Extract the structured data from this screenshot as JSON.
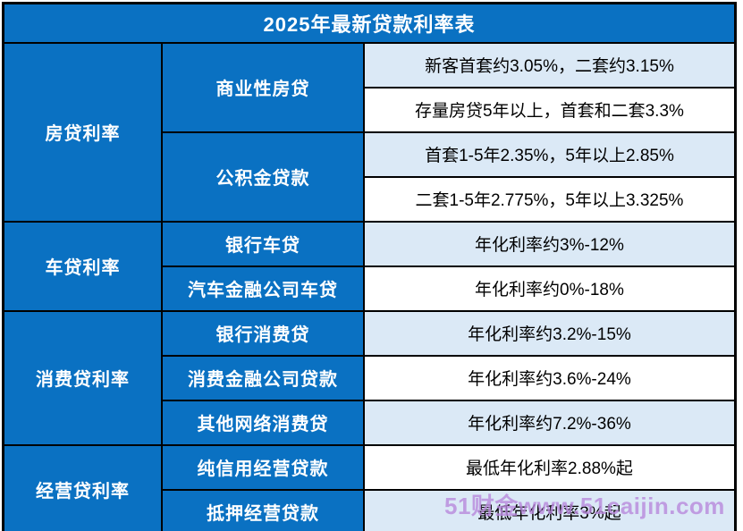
{
  "title": "2025年最新贷款利率表",
  "watermark": "51财金www.51caijin.com",
  "colors": {
    "header_blue": "#0a71c2",
    "row_light_blue": "#dbe9f6",
    "row_white": "#ffffff",
    "border_black": "#000000",
    "watermark_purple": "#b989dd",
    "header_text": "#ffffff",
    "value_text": "#000000"
  },
  "table": {
    "sections": [
      {
        "category": "房贷利率",
        "subcategories": [
          {
            "name": "商业性房贷",
            "values": [
              "新客首套约3.05%，二套约3.15%",
              "存量房贷5年以上，首套和二套3.3%"
            ]
          },
          {
            "name": "公积金贷款",
            "values": [
              "首套1-5年2.35%，5年以上2.85%",
              "二套1-5年2.775%，5年以上3.325%"
            ]
          }
        ]
      },
      {
        "category": "车贷利率",
        "subcategories": [
          {
            "name": "银行车贷",
            "values": [
              "年化利率约3%-12%"
            ]
          },
          {
            "name": "汽车金融公司车贷",
            "values": [
              "年化利率约0%-18%"
            ]
          }
        ]
      },
      {
        "category": "消费贷利率",
        "subcategories": [
          {
            "name": "银行消费贷",
            "values": [
              "年化利率约3.2%-15%"
            ]
          },
          {
            "name": "消费金融公司贷款",
            "values": [
              "年化利率约3.6%-24%"
            ]
          },
          {
            "name": "其他网络消费贷",
            "values": [
              "年化利率约7.2%-36%"
            ]
          }
        ]
      },
      {
        "category": "经营贷利率",
        "subcategories": [
          {
            "name": "纯信用经营贷款",
            "values": [
              "最低年化利率2.88%起"
            ]
          },
          {
            "name": "抵押经营贷款",
            "values": [
              "最低年化利率3%起"
            ]
          }
        ]
      }
    ]
  }
}
